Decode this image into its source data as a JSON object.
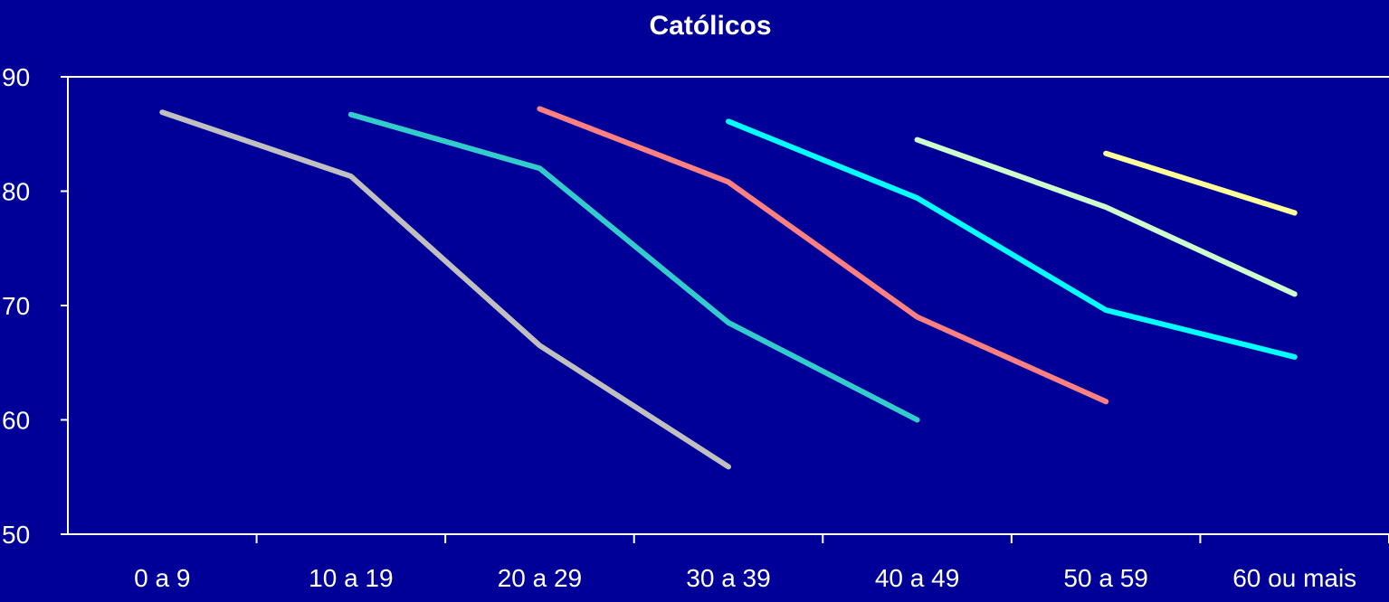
{
  "chart_data": {
    "type": "line",
    "title": "Católicos",
    "xlabel": "",
    "ylabel": "",
    "categories": [
      "0 a 9",
      "10 a 19",
      "20 a 29",
      "30 a 39",
      "40 a 49",
      "50 a 59",
      "60 ou mais"
    ],
    "yticks": [
      "50",
      "60",
      "70",
      "80",
      "90"
    ],
    "ylim": [
      50,
      90
    ],
    "grid": false,
    "legend": "none",
    "colors": {
      "background": "#000099",
      "axis": "#FFFFFF",
      "text": "#FFFFFF"
    },
    "series": [
      {
        "color": "#C0C0C0",
        "values": [
          86.9,
          81.3,
          66.5,
          55.9,
          null,
          null,
          null
        ]
      },
      {
        "color": "#33CCCC",
        "values": [
          null,
          86.7,
          82.0,
          68.5,
          60.0,
          null,
          null
        ]
      },
      {
        "color": "#FF8080",
        "values": [
          null,
          null,
          87.2,
          80.8,
          69.0,
          61.6,
          null
        ]
      },
      {
        "color": "#00FFFF",
        "values": [
          null,
          null,
          null,
          86.1,
          79.4,
          69.6,
          65.5
        ]
      },
      {
        "color": "#CCFFCC",
        "values": [
          null,
          null,
          null,
          null,
          84.5,
          78.6,
          71.0
        ]
      },
      {
        "color": "#FFFF99",
        "values": [
          null,
          null,
          null,
          null,
          null,
          83.3,
          78.1
        ]
      }
    ]
  }
}
